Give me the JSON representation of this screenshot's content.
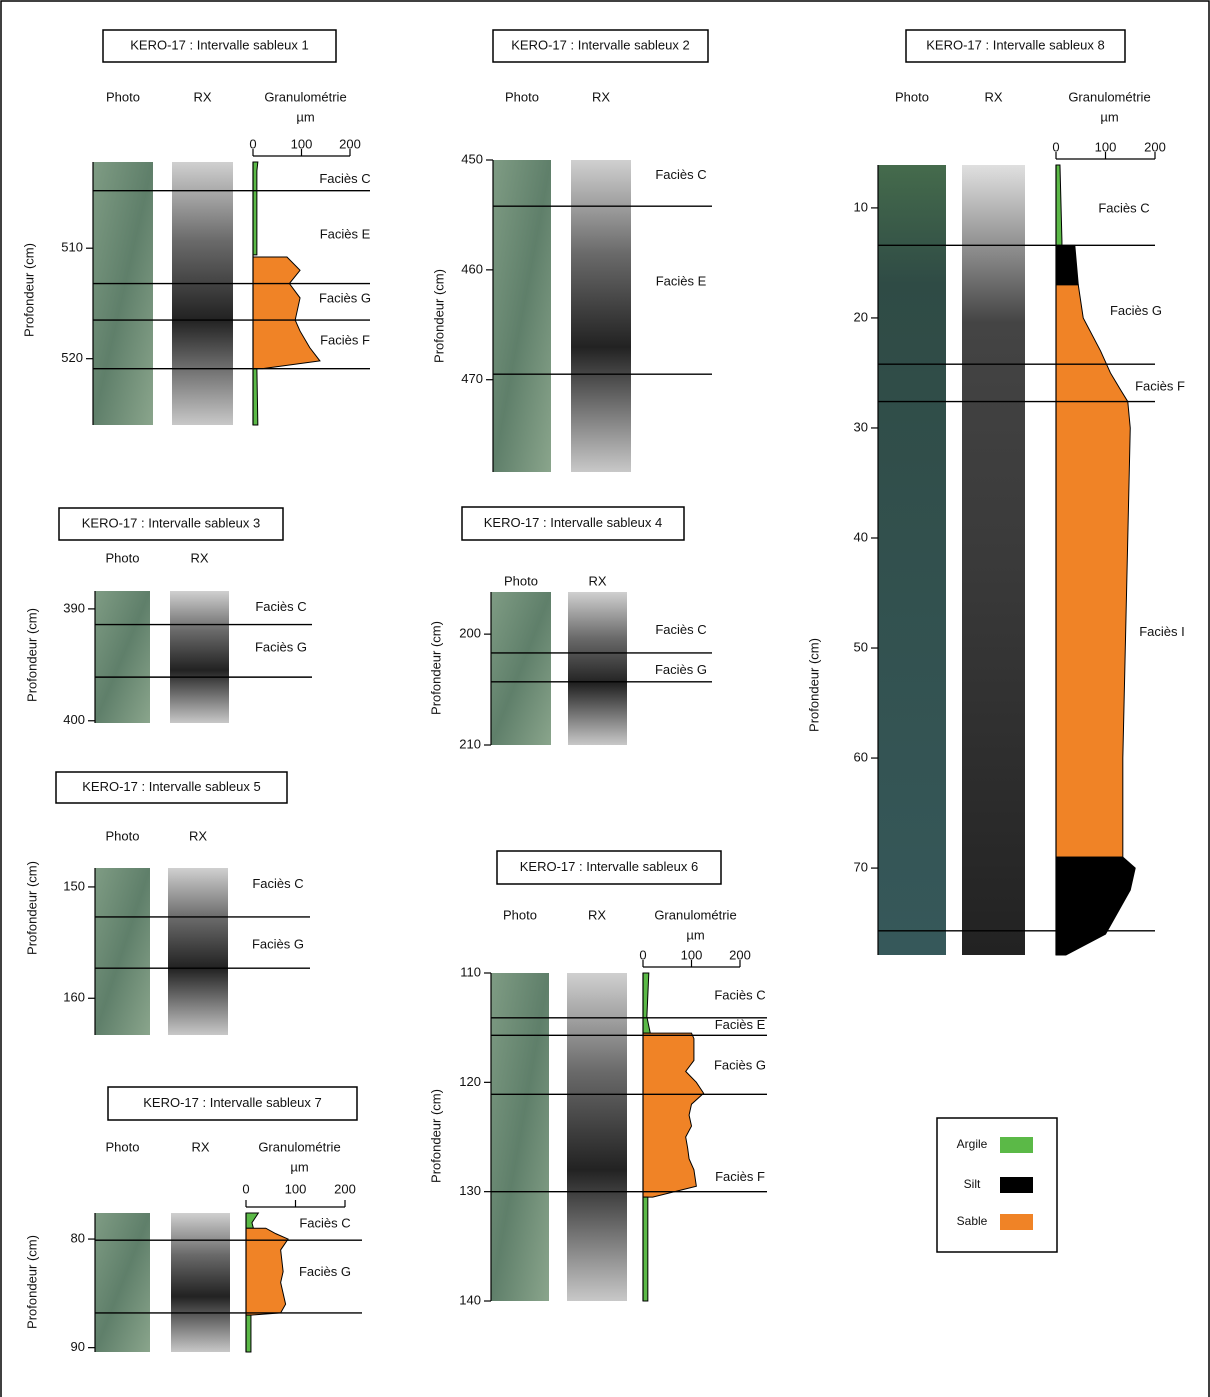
{
  "panels": [
    {
      "title": "KERO-17 : Intervalle sableux  1",
      "columns": [
        "Photo",
        "RX",
        "Granulométrie"
      ],
      "axis_label": "Profondeur (cm)",
      "ylim": [
        502.2,
        526
      ],
      "yticks": [
        510,
        520
      ],
      "boundaries": [
        504.8,
        513.2,
        516.5,
        520.9
      ],
      "facies": [
        {
          "label": "Faciès C",
          "depth": 503.8
        },
        {
          "label": "Faciès E",
          "depth": 508.8
        },
        {
          "label": "Faciès G",
          "depth": 514.6
        },
        {
          "label": "Faciès F",
          "depth": 518.4
        }
      ],
      "granulo": {
        "unit": "µm",
        "xlim": [
          0,
          200
        ],
        "xticks": [
          0,
          100,
          200
        ],
        "layers": [
          {
            "class": "Argile",
            "depth": [
              502.2,
              503,
              510.6
            ],
            "size": [
              10,
              8,
              8
            ]
          },
          {
            "class": "Sable",
            "depth": [
              510.8,
              512,
              513.2,
              514.5,
              516.5,
              517.5,
              519,
              520.2,
              520.9
            ],
            "size": [
              70,
              97,
              75,
              97,
              87,
              97,
              117,
              138,
              20
            ]
          },
          {
            "class": "Argile",
            "depth": [
              520.9,
              526
            ],
            "size": [
              8,
              10
            ]
          }
        ]
      }
    },
    {
      "title": "KERO-17 : Intervalle sableux 2",
      "columns": [
        "Photo",
        "RX"
      ],
      "axis_label": "Profondeur (cm)",
      "ylim": [
        450,
        478.4
      ],
      "yticks": [
        450,
        460,
        470
      ],
      "boundaries": [
        454.2,
        469.5
      ],
      "facies": [
        {
          "label": "Faciès C",
          "depth": 451.4
        },
        {
          "label": "Faciès E",
          "depth": 461.1
        }
      ]
    },
    {
      "title": "KERO-17 : Intervalle sableux 3",
      "columns": [
        "Photo",
        "RX"
      ],
      "axis_label": "Profondeur (cm)",
      "ylim": [
        388.4,
        400.2
      ],
      "yticks": [
        390,
        400
      ],
      "boundaries": [
        391.4,
        396.1
      ],
      "facies": [
        {
          "label": "Faciès C",
          "depth": 389.9
        },
        {
          "label": "Faciès G",
          "depth": 393.5
        }
      ]
    },
    {
      "title": "KERO-17 : Intervalle sableux 4",
      "columns": [
        "Photo",
        "RX"
      ],
      "axis_label": "Profondeur (cm)",
      "ylim": [
        196.2,
        210
      ],
      "yticks": [
        200,
        210
      ],
      "boundaries": [
        201.7,
        204.3
      ],
      "facies": [
        {
          "label": "Faciès C",
          "depth": 199.7
        },
        {
          "label": "Faciès G",
          "depth": 203.3
        }
      ]
    },
    {
      "title": "KERO-17 : Intervalle sableux 5",
      "columns": [
        "Photo",
        "RX"
      ],
      "axis_label": "Profondeur (cm)",
      "ylim": [
        148.3,
        163.3
      ],
      "yticks": [
        150,
        160
      ],
      "boundaries": [
        152.7,
        157.3
      ],
      "facies": [
        {
          "label": "Faciès C",
          "depth": 149.8
        },
        {
          "label": "Faciès G",
          "depth": 155.2
        }
      ]
    },
    {
      "title": "KERO-17 : Intervalle sableux 6",
      "columns": [
        "Photo",
        "RX",
        "Granulométrie"
      ],
      "axis_label": "Profondeur (cm)",
      "ylim": [
        110,
        140
      ],
      "yticks": [
        110,
        120,
        130,
        140
      ],
      "boundaries": [
        114.1,
        115.7,
        121.1,
        130
      ],
      "facies": [
        {
          "label": "Faciès C",
          "depth": 112.1
        },
        {
          "label": "Faciès E",
          "depth": 114.8
        },
        {
          "label": "Faciès G",
          "depth": 118.5
        },
        {
          "label": "Faciès F",
          "depth": 128.7
        }
      ],
      "granulo": {
        "unit": "µm",
        "xlim": [
          0,
          200
        ],
        "xticks": [
          0,
          100,
          200
        ],
        "layers": [
          {
            "class": "Argile",
            "depth": [
              110,
              114,
              115.5
            ],
            "size": [
              12,
              8,
              15
            ]
          },
          {
            "class": "Sable",
            "depth": [
              115.5,
              116,
              118,
              119,
              120,
              121,
              122,
              123,
              124,
              125,
              126,
              127,
              128,
              129.5,
              130.5
            ],
            "size": [
              100,
              105,
              105,
              88,
              110,
              125,
              100,
              95,
              100,
              88,
              92,
              95,
              105,
              110,
              20
            ]
          },
          {
            "class": "Argile",
            "depth": [
              130.5,
              140
            ],
            "size": [
              10,
              10
            ]
          }
        ]
      }
    },
    {
      "title": "KERO-17 : Intervalle sableux 7",
      "columns": [
        "Photo",
        "RX",
        "Granulométrie"
      ],
      "axis_label": "Profondeur (cm)",
      "ylim": [
        77.6,
        90.4
      ],
      "yticks": [
        80,
        90
      ],
      "boundaries": [
        80.1,
        86.8
      ],
      "facies": [
        {
          "label": "Faciès C",
          "depth": 78.6
        },
        {
          "label": "Faciès G",
          "depth": 83.1
        }
      ],
      "granulo": {
        "unit": "µm",
        "xlim": [
          0,
          200
        ],
        "xticks": [
          0,
          100,
          200
        ],
        "layers": [
          {
            "class": "Argile",
            "depth": [
              77.6,
              78.5,
              79
            ],
            "size": [
              25,
              12,
              15
            ]
          },
          {
            "class": "Sable",
            "depth": [
              79,
              79.5,
              80,
              81,
              83,
              84,
              86,
              86.8,
              87
            ],
            "size": [
              40,
              60,
              85,
              70,
              75,
              70,
              80,
              70,
              10
            ]
          },
          {
            "class": "Argile",
            "depth": [
              87,
              90.4
            ],
            "size": [
              10,
              10
            ]
          }
        ]
      }
    },
    {
      "title": "KERO-17 : Intervalle sableux 8",
      "columns": [
        "Photo",
        "RX",
        "Granulométrie"
      ],
      "axis_label": "Profondeur (cm)",
      "ylim": [
        6.1,
        77.9
      ],
      "yticks": [
        10,
        20,
        30,
        40,
        50,
        60,
        70
      ],
      "boundaries": [
        13.4,
        24.2,
        27.6,
        75.7
      ],
      "facies": [
        {
          "label": "Faciès C",
          "depth": 10.1
        },
        {
          "label": "Faciès G",
          "depth": 19.4
        },
        {
          "label": "Faciès F",
          "depth": 26.3
        },
        {
          "label": "Faciès I",
          "depth": 48.6
        }
      ],
      "granulo": {
        "unit": "µm",
        "xlim": [
          0,
          200
        ],
        "xticks": [
          0,
          100,
          200
        ],
        "layers": [
          {
            "class": "Argile",
            "depth": [
              6.1,
              13,
              13.4
            ],
            "size": [
              8,
              12,
              12
            ]
          },
          {
            "class": "Silt",
            "depth": [
              13.4,
              17
            ],
            "size": [
              38,
              45
            ]
          },
          {
            "class": "Sable",
            "depth": [
              17,
              20,
              23,
              25,
              26.5,
              27.6,
              30,
              50,
              60,
              69
            ],
            "size": [
              45,
              55,
              90,
              110,
              130,
              145,
              150,
              140,
              135,
              135
            ]
          },
          {
            "class": "Silt",
            "depth": [
              69,
              70,
              72,
              76,
              77.9
            ],
            "size": [
              135,
              160,
              150,
              100,
              20
            ]
          }
        ]
      }
    }
  ],
  "legend": {
    "items": [
      {
        "name": "Argile",
        "color": "#5bb947"
      },
      {
        "name": "Silt",
        "color": "#000000"
      },
      {
        "name": "Sable",
        "color": "#f08326"
      }
    ]
  }
}
